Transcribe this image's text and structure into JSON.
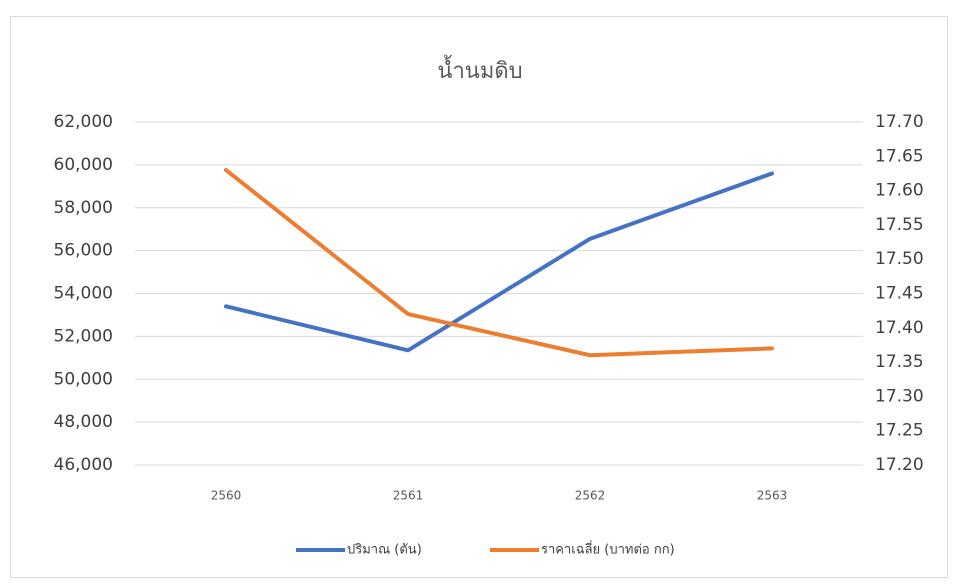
{
  "chart_data": {
    "type": "line",
    "title": "น้ำนมดิบ",
    "categories": [
      "2560",
      "2561",
      "2562",
      "2563"
    ],
    "series": [
      {
        "name": "ปริมาณ (ตัน)",
        "color": "#4472c4",
        "values": [
          53400,
          51350,
          56550,
          59600
        ]
      },
      {
        "name": "ราคาเฉลี่ย (บาทต่อ กก)",
        "color": "#ed7d31",
        "axis": "y2",
        "values": [
          17.63,
          17.42,
          17.36,
          17.37
        ]
      }
    ],
    "ylim": [
      46000,
      62000
    ],
    "yticks": [
      {
        "value": 46000,
        "label": "46,000"
      },
      {
        "value": 48000,
        "label": "48,000"
      },
      {
        "value": 50000,
        "label": "50,000"
      },
      {
        "value": 52000,
        "label": "52,000"
      },
      {
        "value": 54000,
        "label": "54,000"
      },
      {
        "value": 56000,
        "label": "56,000"
      },
      {
        "value": 58000,
        "label": "58,000"
      },
      {
        "value": 60000,
        "label": "60,000"
      },
      {
        "value": 62000,
        "label": "62,000"
      }
    ],
    "y2lim": [
      17.2,
      17.7
    ],
    "y2ticks": [
      {
        "value": 17.2,
        "label": "17.20"
      },
      17.25,
      {
        "value": 17.3,
        "label": "17.30"
      },
      17.35,
      {
        "value": 17.4,
        "label": "17.40"
      },
      17.45,
      {
        "value": 17.5,
        "label": "17.50"
      },
      17.55,
      {
        "value": 17.6,
        "label": "17.60"
      },
      17.65,
      {
        "value": 17.7,
        "label": "17.70"
      }
    ],
    "grid": true,
    "legend": "bottom"
  }
}
